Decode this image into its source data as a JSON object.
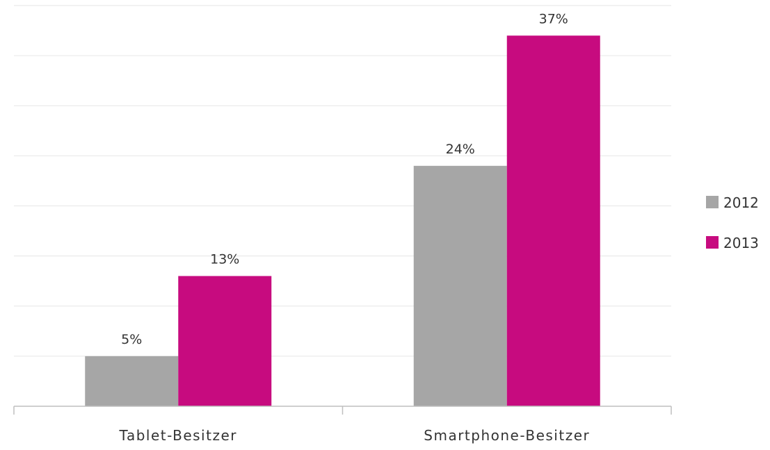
{
  "chart_data": {
    "type": "bar",
    "categories": [
      "Tablet-Besitzer",
      "Smartphone-Besitzer"
    ],
    "series": [
      {
        "name": "2012",
        "values": [
          5,
          24
        ],
        "labels": [
          "5%",
          "24%"
        ],
        "color": "#a6a6a6"
      },
      {
        "name": "2013",
        "values": [
          13,
          37
        ],
        "labels": [
          "13%",
          "37%"
        ],
        "color": "#c70b7f"
      }
    ],
    "title": "",
    "xlabel": "",
    "ylabel": "",
    "ylim": [
      0,
      40
    ],
    "y_axis_visible": false,
    "grid": true,
    "legend_position": "right"
  }
}
